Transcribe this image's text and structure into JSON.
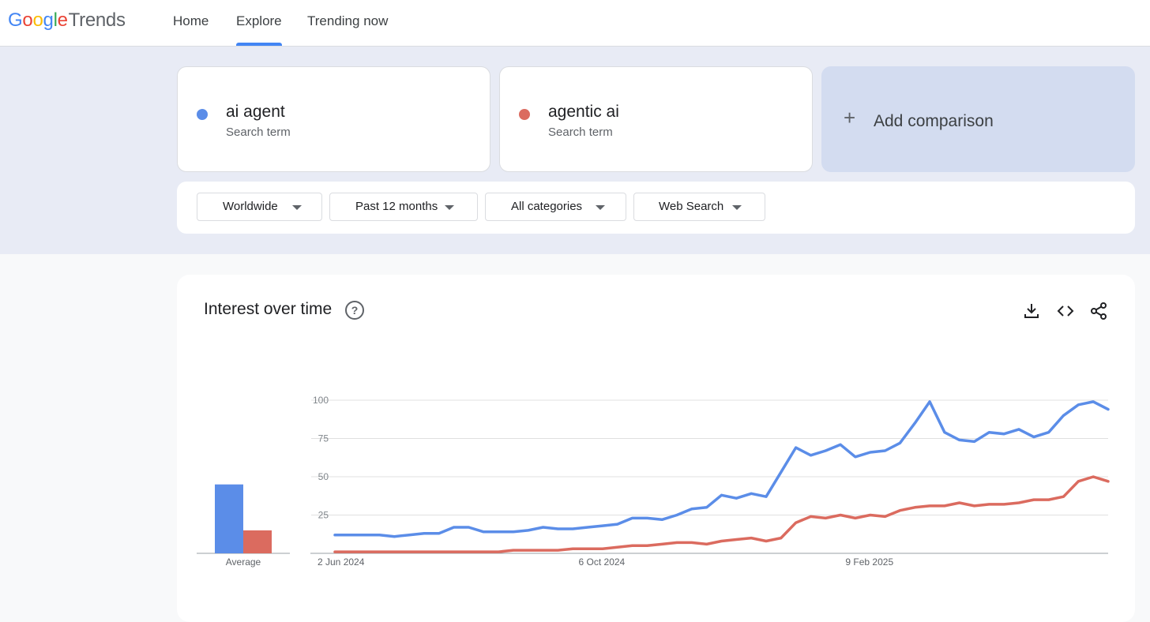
{
  "header": {
    "logo_google": "Google",
    "logo_product": "Trends",
    "nav": [
      "Home",
      "Explore",
      "Trending now"
    ]
  },
  "terms": [
    {
      "name": "ai agent",
      "type": "Search term",
      "color": "#5b8de8"
    },
    {
      "name": "agentic ai",
      "type": "Search term",
      "color": "#db6b5f"
    }
  ],
  "add_comparison": "Add comparison",
  "filters": {
    "region": "Worldwide",
    "time": "Past 12 months",
    "category": "All categories",
    "property": "Web Search"
  },
  "card": {
    "title": "Interest over time",
    "actions": [
      "download-icon",
      "embed-icon",
      "share-icon"
    ]
  },
  "chart_data": {
    "type": "line",
    "y_ticks": [
      25,
      50,
      75,
      100
    ],
    "ylim": [
      0,
      100
    ],
    "x_tick_labels": [
      "2 Jun 2024",
      "6 Oct 2024",
      "9 Feb 2025"
    ],
    "x_tick_index": [
      0,
      18,
      36
    ],
    "average_label": "Average",
    "averages": [
      45,
      15
    ],
    "series": [
      {
        "name": "ai agent",
        "color": "#5b8de8",
        "values": [
          12,
          12,
          12,
          12,
          11,
          12,
          13,
          13,
          17,
          17,
          14,
          14,
          14,
          15,
          17,
          16,
          16,
          17,
          18,
          19,
          23,
          23,
          22,
          25,
          29,
          30,
          38,
          36,
          39,
          37,
          53,
          69,
          64,
          67,
          71,
          63,
          66,
          67,
          72,
          85,
          99,
          79,
          74,
          73,
          79,
          78,
          81,
          76,
          79,
          90,
          97,
          99,
          94
        ]
      },
      {
        "name": "agentic ai",
        "color": "#db6b5f",
        "values": [
          1,
          1,
          1,
          1,
          1,
          1,
          1,
          1,
          1,
          1,
          1,
          1,
          2,
          2,
          2,
          2,
          3,
          3,
          3,
          4,
          5,
          5,
          6,
          7,
          7,
          6,
          8,
          9,
          10,
          8,
          10,
          20,
          24,
          23,
          25,
          23,
          25,
          24,
          28,
          30,
          31,
          31,
          33,
          31,
          32,
          32,
          33,
          35,
          35,
          37,
          47,
          50,
          47
        ]
      }
    ]
  }
}
